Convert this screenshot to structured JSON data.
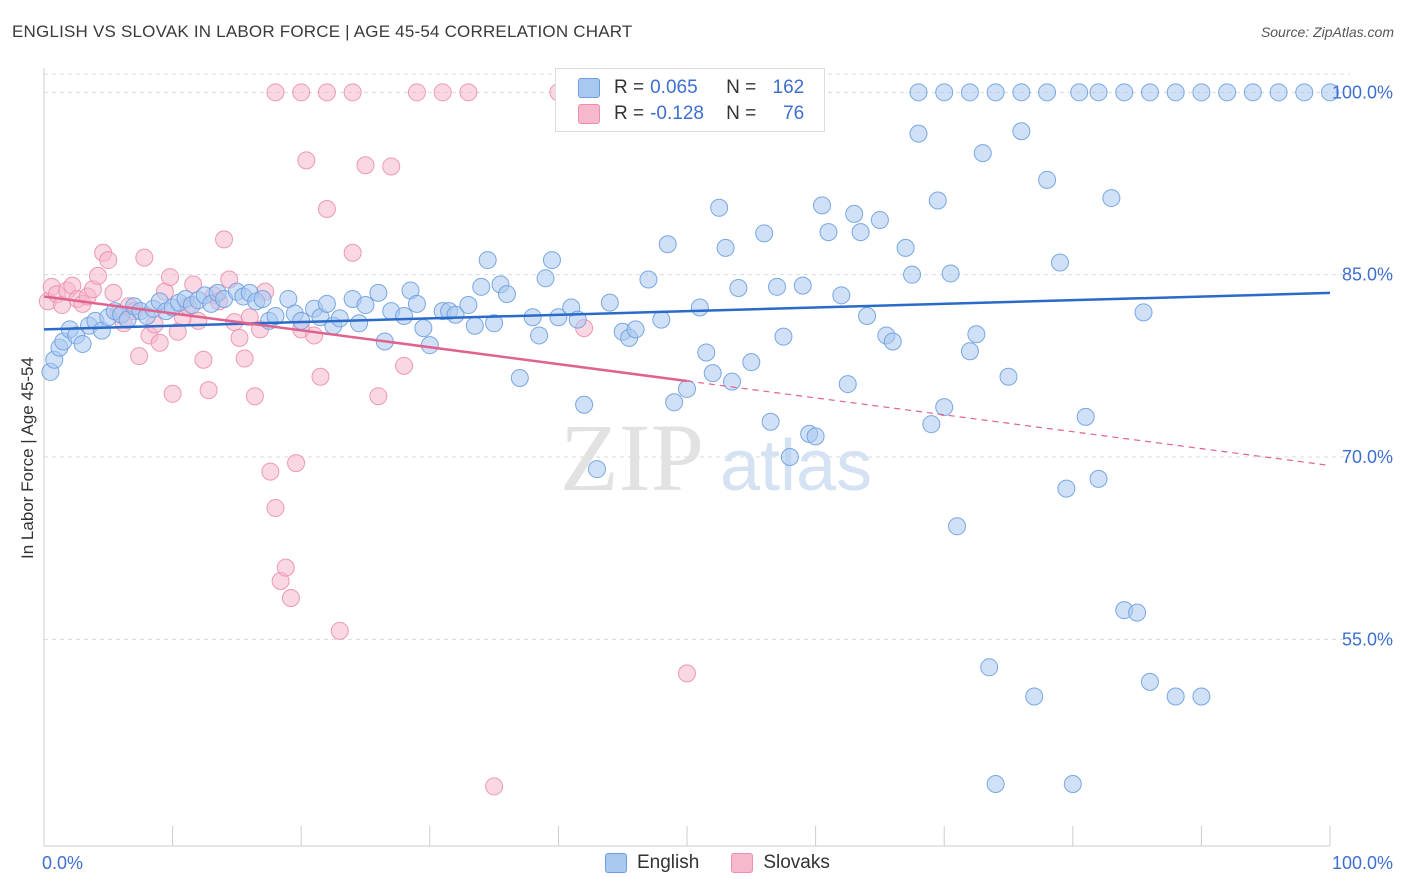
{
  "header": {
    "title": "ENGLISH VS SLOVAK IN LABOR FORCE | AGE 45-54 CORRELATION CHART",
    "source": "Source: ZipAtlas.com"
  },
  "watermark": {
    "zip": "ZIP",
    "atlas": "atlas"
  },
  "legend": {
    "rows": [
      {
        "r_label": "R =",
        "r_value": "0.065",
        "n_label": "N =",
        "n_value": "162"
      },
      {
        "r_label": "R =",
        "r_value": "-0.128",
        "n_label": "N =",
        "n_value": "76"
      }
    ]
  },
  "bottom_legend": {
    "english": "English",
    "slovaks": "Slovaks"
  },
  "colors": {
    "english_fill": "#a9c8f0",
    "english_stroke": "#6d9fe0",
    "english_line": "#2a6ac8",
    "slovak_fill": "#f6b8cc",
    "slovak_stroke": "#ec8fae",
    "slovak_line": "#e0628f",
    "tick_label": "#3d6fd1",
    "grid": "#d9d9d9"
  },
  "chart_data": {
    "type": "scatter",
    "title": "ENGLISH VS SLOVAK IN LABOR FORCE | AGE 45-54 CORRELATION CHART",
    "xlabel": "",
    "ylabel": "In Labor Force | Age 45-54",
    "xlim": [
      0,
      100
    ],
    "ylim": [
      38,
      102
    ],
    "x_tick_labels": [
      "0.0%",
      "100.0%"
    ],
    "y_ticks": [
      55,
      70,
      85,
      100
    ],
    "y_tick_labels": [
      "55.0%",
      "70.0%",
      "85.0%",
      "100.0%"
    ],
    "series": [
      {
        "name": "English",
        "r": 0.065,
        "n": 162,
        "trend": {
          "x": [
            0,
            100
          ],
          "y": [
            80.5,
            83.5
          ],
          "dashed_from": null
        },
        "points": [
          [
            0.5,
            77
          ],
          [
            0.8,
            78
          ],
          [
            1.2,
            79
          ],
          [
            1.5,
            79.5
          ],
          [
            2,
            80.5
          ],
          [
            2.5,
            80
          ],
          [
            3,
            79.3
          ],
          [
            3.5,
            80.8
          ],
          [
            4,
            81.2
          ],
          [
            4.5,
            80.4
          ],
          [
            5,
            81.5
          ],
          [
            5.5,
            82
          ],
          [
            6,
            81.7
          ],
          [
            6.5,
            81.3
          ],
          [
            7,
            82.4
          ],
          [
            7.5,
            82
          ],
          [
            8,
            81.6
          ],
          [
            8.5,
            82.2
          ],
          [
            9,
            82.8
          ],
          [
            9.5,
            82
          ],
          [
            10,
            82.3
          ],
          [
            10.5,
            82.7
          ],
          [
            11,
            83
          ],
          [
            11.5,
            82.5
          ],
          [
            12,
            82.9
          ],
          [
            12.5,
            83.3
          ],
          [
            13,
            82.6
          ],
          [
            13.5,
            83.5
          ],
          [
            14,
            83
          ],
          [
            15,
            83.6
          ],
          [
            15.5,
            83.2
          ],
          [
            16,
            83.5
          ],
          [
            16.5,
            82.8
          ],
          [
            17,
            83
          ],
          [
            17.5,
            81.2
          ],
          [
            18,
            81.6
          ],
          [
            19,
            83
          ],
          [
            19.5,
            81.8
          ],
          [
            20,
            81.2
          ],
          [
            21,
            82.2
          ],
          [
            21.5,
            81.5
          ],
          [
            22,
            82.6
          ],
          [
            22.5,
            80.8
          ],
          [
            23,
            81.4
          ],
          [
            24,
            83
          ],
          [
            24.5,
            81
          ],
          [
            25,
            82.5
          ],
          [
            26,
            83.5
          ],
          [
            26.5,
            79.5
          ],
          [
            27,
            82
          ],
          [
            28,
            81.6
          ],
          [
            28.5,
            83.7
          ],
          [
            29,
            82.6
          ],
          [
            29.5,
            80.6
          ],
          [
            30,
            79.2
          ],
          [
            31,
            82
          ],
          [
            31.5,
            82
          ],
          [
            32,
            81.7
          ],
          [
            33,
            82.5
          ],
          [
            33.5,
            80.8
          ],
          [
            34,
            84
          ],
          [
            34.5,
            86.2
          ],
          [
            35,
            81
          ],
          [
            35.5,
            84.2
          ],
          [
            36,
            83.4
          ],
          [
            37,
            76.5
          ],
          [
            38,
            81.5
          ],
          [
            38.5,
            80
          ],
          [
            39,
            84.7
          ],
          [
            39.5,
            86.2
          ],
          [
            40,
            81.5
          ],
          [
            41,
            82.3
          ],
          [
            41.5,
            81.3
          ],
          [
            42,
            74.3
          ],
          [
            43,
            69
          ],
          [
            44,
            82.7
          ],
          [
            45,
            80.3
          ],
          [
            45.5,
            79.8
          ],
          [
            46,
            80.5
          ],
          [
            47,
            84.6
          ],
          [
            48,
            81.3
          ],
          [
            48.5,
            87.5
          ],
          [
            49,
            74.5
          ],
          [
            50,
            75.6
          ],
          [
            51,
            82.3
          ],
          [
            51.5,
            78.6
          ],
          [
            52,
            76.9
          ],
          [
            52.5,
            90.5
          ],
          [
            53,
            87.2
          ],
          [
            53.5,
            76.2
          ],
          [
            54,
            83.9
          ],
          [
            55,
            77.8
          ],
          [
            56,
            88.4
          ],
          [
            56.5,
            72.9
          ],
          [
            57,
            84
          ],
          [
            57.5,
            79.9
          ],
          [
            58,
            70
          ],
          [
            59,
            84.1
          ],
          [
            59.5,
            71.9
          ],
          [
            60,
            71.7
          ],
          [
            60.5,
            90.7
          ],
          [
            61,
            88.5
          ],
          [
            62,
            83.3
          ],
          [
            62.5,
            76
          ],
          [
            63,
            90
          ],
          [
            63.5,
            88.5
          ],
          [
            64,
            81.6
          ],
          [
            65,
            89.5
          ],
          [
            65.5,
            80
          ],
          [
            66,
            79.5
          ],
          [
            67,
            87.2
          ],
          [
            67.5,
            85
          ],
          [
            68,
            96.6
          ],
          [
            69,
            72.7
          ],
          [
            69.5,
            91.1
          ],
          [
            70,
            74.1
          ],
          [
            70.5,
            85.1
          ],
          [
            71,
            64.3
          ],
          [
            72,
            78.7
          ],
          [
            72.5,
            80.1
          ],
          [
            73,
            95
          ],
          [
            73.5,
            52.7
          ],
          [
            74,
            43.1
          ],
          [
            75,
            76.6
          ],
          [
            76,
            96.8
          ],
          [
            77,
            50.3
          ],
          [
            78,
            92.8
          ],
          [
            79,
            86
          ],
          [
            79.5,
            67.4
          ],
          [
            80,
            43.1
          ],
          [
            80.5,
            100
          ],
          [
            81,
            73.3
          ],
          [
            82,
            68.2
          ],
          [
            83,
            91.3
          ],
          [
            84,
            57.4
          ],
          [
            85,
            57.2
          ],
          [
            85.5,
            81.9
          ],
          [
            86,
            51.5
          ],
          [
            88,
            50.3
          ],
          [
            90,
            50.3
          ],
          [
            92,
            100
          ],
          [
            94,
            100
          ],
          [
            96,
            100
          ],
          [
            98,
            100
          ],
          [
            100,
            100
          ],
          [
            68,
            100
          ],
          [
            70,
            100
          ],
          [
            72,
            100
          ],
          [
            74,
            100
          ],
          [
            76,
            100
          ],
          [
            78,
            100
          ],
          [
            82,
            100
          ],
          [
            84,
            100
          ],
          [
            86,
            100
          ],
          [
            88,
            100
          ],
          [
            90,
            100
          ]
        ]
      },
      {
        "name": "Slovaks",
        "r": -0.128,
        "n": 76,
        "trend": {
          "x": [
            0,
            100
          ],
          "y": [
            83.2,
            69.3
          ],
          "dashed_from": 50
        },
        "points": [
          [
            0.3,
            82.8
          ],
          [
            0.6,
            84
          ],
          [
            1,
            83.4
          ],
          [
            1.4,
            82.5
          ],
          [
            1.8,
            83.7
          ],
          [
            2.2,
            84.1
          ],
          [
            2.6,
            83
          ],
          [
            3,
            82.6
          ],
          [
            3.4,
            83.2
          ],
          [
            3.8,
            83.8
          ],
          [
            4.2,
            84.9
          ],
          [
            4.6,
            86.8
          ],
          [
            5,
            86.2
          ],
          [
            5.4,
            83.5
          ],
          [
            5.8,
            81.8
          ],
          [
            6.2,
            81
          ],
          [
            6.6,
            82.4
          ],
          [
            7,
            82
          ],
          [
            7.4,
            78.3
          ],
          [
            7.8,
            86.4
          ],
          [
            8.2,
            80
          ],
          [
            8.6,
            80.9
          ],
          [
            9,
            79.4
          ],
          [
            9.4,
            83.6
          ],
          [
            9.8,
            84.8
          ],
          [
            10,
            75.2
          ],
          [
            10.4,
            80.3
          ],
          [
            10.8,
            81.5
          ],
          [
            11.2,
            82.4
          ],
          [
            11.6,
            84.2
          ],
          [
            12,
            81.2
          ],
          [
            12.4,
            78
          ],
          [
            12.8,
            75.5
          ],
          [
            13.2,
            83.3
          ],
          [
            13.6,
            82.8
          ],
          [
            14,
            87.9
          ],
          [
            14.4,
            84.6
          ],
          [
            14.8,
            81.1
          ],
          [
            15.2,
            79.8
          ],
          [
            15.6,
            78.1
          ],
          [
            16,
            81.5
          ],
          [
            16.4,
            75
          ],
          [
            16.8,
            80.5
          ],
          [
            17.2,
            83.6
          ],
          [
            17.6,
            68.8
          ],
          [
            18,
            65.8
          ],
          [
            18.4,
            59.8
          ],
          [
            18.8,
            60.9
          ],
          [
            19.2,
            58.4
          ],
          [
            19.6,
            69.5
          ],
          [
            20,
            80.5
          ],
          [
            20.4,
            94.4
          ],
          [
            21,
            80
          ],
          [
            21.5,
            76.6
          ],
          [
            22,
            90.4
          ],
          [
            23,
            55.7
          ],
          [
            24,
            86.8
          ],
          [
            25,
            94
          ],
          [
            26,
            75
          ],
          [
            27,
            93.9
          ],
          [
            28,
            77.5
          ],
          [
            29,
            100
          ],
          [
            31,
            100
          ],
          [
            33,
            100
          ],
          [
            35,
            42.9
          ],
          [
            40,
            100
          ],
          [
            42,
            80.6
          ],
          [
            50,
            52.2
          ],
          [
            18,
            100
          ],
          [
            20,
            100
          ],
          [
            22,
            100
          ],
          [
            24,
            100
          ]
        ]
      }
    ]
  }
}
